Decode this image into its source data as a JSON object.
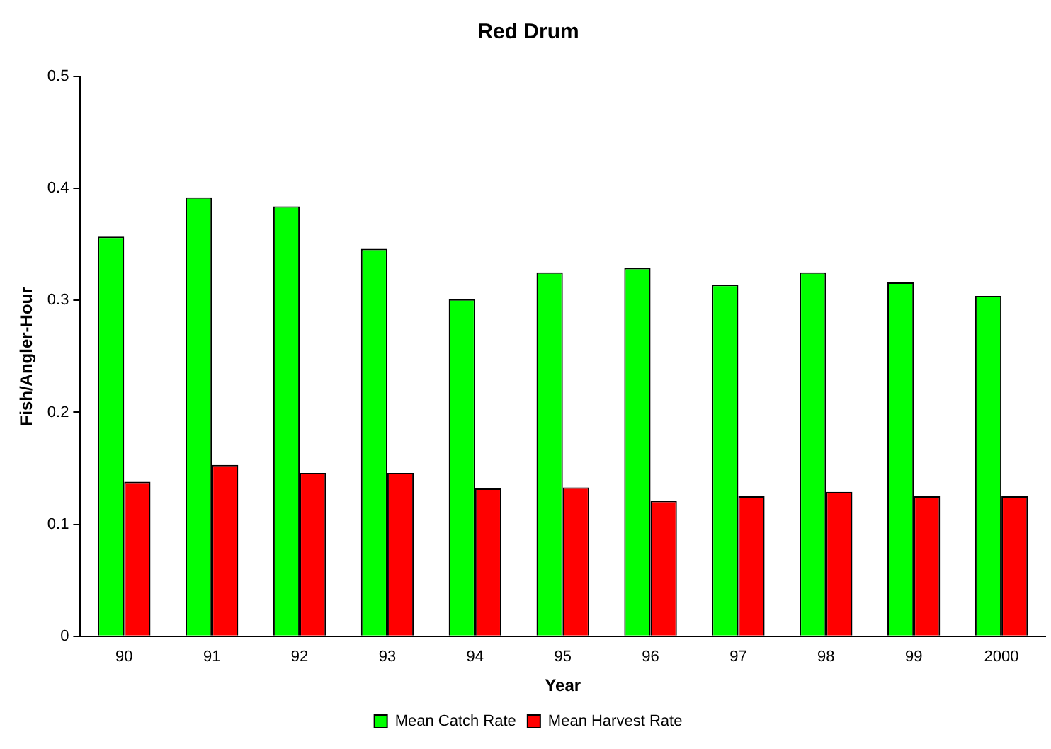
{
  "chart_data": {
    "type": "bar",
    "title": "Red Drum",
    "xlabel": "Year",
    "ylabel": "Fish/Angler-Hour",
    "categories": [
      "90",
      "91",
      "92",
      "93",
      "94",
      "95",
      "96",
      "97",
      "98",
      "99",
      "2000"
    ],
    "series": [
      {
        "name": "Mean Catch Rate",
        "color": "#00ff00",
        "values": [
          0.357,
          0.392,
          0.384,
          0.346,
          0.301,
          0.325,
          0.329,
          0.314,
          0.325,
          0.316,
          0.304
        ]
      },
      {
        "name": "Mean Harvest Rate",
        "color": "#ff0000",
        "values": [
          0.138,
          0.153,
          0.146,
          0.146,
          0.132,
          0.133,
          0.121,
          0.125,
          0.129,
          0.125,
          0.125
        ]
      }
    ],
    "ylim": [
      0,
      0.5
    ],
    "yticks": [
      0,
      0.1,
      0.2,
      0.3,
      0.4,
      0.5
    ],
    "grid": false,
    "legend": "bottom"
  }
}
